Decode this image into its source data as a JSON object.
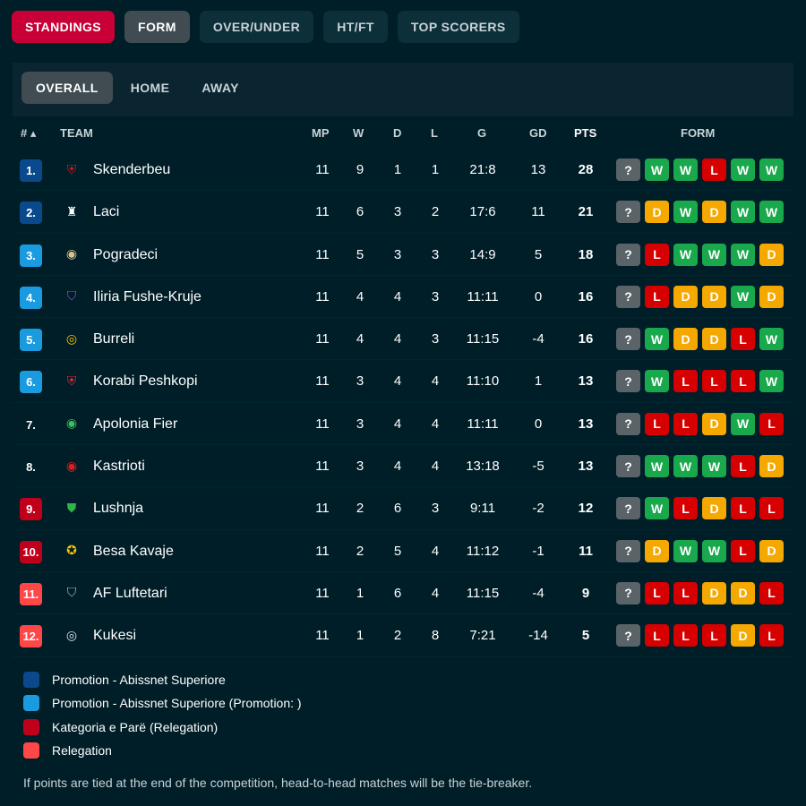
{
  "top_tabs": [
    {
      "label": "STANDINGS",
      "state": "active-red"
    },
    {
      "label": "FORM",
      "state": "active-grey"
    },
    {
      "label": "OVER/UNDER",
      "state": ""
    },
    {
      "label": "HT/FT",
      "state": ""
    },
    {
      "label": "TOP SCORERS",
      "state": ""
    }
  ],
  "sub_tabs": [
    {
      "label": "OVERALL",
      "active": true
    },
    {
      "label": "HOME",
      "active": false
    },
    {
      "label": "AWAY",
      "active": false
    }
  ],
  "headers": {
    "rank": "# ▴",
    "team": "TEAM",
    "mp": "MP",
    "w": "W",
    "d": "D",
    "l": "L",
    "g": "G",
    "gd": "GD",
    "pts": "PTS",
    "form": "FORM"
  },
  "colors": {
    "promotion": "#0a4a8c",
    "promotion_playoff": "#1a9be0",
    "kategoria_pare": "#c0001a",
    "relegation": "#ff4747"
  },
  "rows": [
    {
      "rank": "1.",
      "zone": "promotion",
      "team": "Skenderbeu",
      "logo": "shield-icon",
      "logo_glyph": "⛨",
      "logo_color": "#c81e28",
      "mp": "11",
      "w": "9",
      "d": "1",
      "l": "1",
      "g": "21:8",
      "gd": "13",
      "pts": "28",
      "form": [
        "?",
        "W",
        "W",
        "L",
        "W",
        "W"
      ]
    },
    {
      "rank": "2.",
      "zone": "promotion",
      "team": "Laci",
      "logo": "striped-crest-icon",
      "logo_glyph": "♜",
      "logo_color": "#ffffff",
      "mp": "11",
      "w": "6",
      "d": "3",
      "l": "2",
      "g": "17:6",
      "gd": "11",
      "pts": "21",
      "form": [
        "?",
        "D",
        "W",
        "D",
        "W",
        "W"
      ]
    },
    {
      "rank": "3.",
      "zone": "promotion_playoff",
      "team": "Pogradeci",
      "logo": "round-crest-icon",
      "logo_glyph": "◉",
      "logo_color": "#d9c38a",
      "mp": "11",
      "w": "5",
      "d": "3",
      "l": "3",
      "g": "14:9",
      "gd": "5",
      "pts": "18",
      "form": [
        "?",
        "L",
        "W",
        "W",
        "W",
        "D"
      ]
    },
    {
      "rank": "4.",
      "zone": "promotion_playoff",
      "team": "Iliria Fushe-Kruje",
      "logo": "purple-crest-icon",
      "logo_glyph": "⛉",
      "logo_color": "#8a4fd1",
      "mp": "11",
      "w": "4",
      "d": "4",
      "l": "3",
      "g": "11:11",
      "gd": "0",
      "pts": "16",
      "form": [
        "?",
        "L",
        "D",
        "D",
        "W",
        "D"
      ]
    },
    {
      "rank": "5.",
      "zone": "promotion_playoff",
      "team": "Burreli",
      "logo": "ball-crest-icon",
      "logo_glyph": "◎",
      "logo_color": "#f2c200",
      "mp": "11",
      "w": "4",
      "d": "4",
      "l": "3",
      "g": "11:15",
      "gd": "-4",
      "pts": "16",
      "form": [
        "?",
        "W",
        "D",
        "D",
        "L",
        "W"
      ]
    },
    {
      "rank": "6.",
      "zone": "promotion_playoff",
      "team": "Korabi Peshkopi",
      "logo": "striped-shield-icon",
      "logo_glyph": "⛨",
      "logo_color": "#e0303a",
      "mp": "11",
      "w": "3",
      "d": "4",
      "l": "4",
      "g": "11:10",
      "gd": "1",
      "pts": "13",
      "form": [
        "?",
        "W",
        "L",
        "L",
        "L",
        "W"
      ]
    },
    {
      "rank": "7.",
      "zone": "",
      "team": "Apolonia Fier",
      "logo": "green-round-crest-icon",
      "logo_glyph": "◉",
      "logo_color": "#3bbf5a",
      "mp": "11",
      "w": "3",
      "d": "4",
      "l": "4",
      "g": "11:11",
      "gd": "0",
      "pts": "13",
      "form": [
        "?",
        "L",
        "L",
        "D",
        "W",
        "L"
      ]
    },
    {
      "rank": "8.",
      "zone": "",
      "team": "Kastrioti",
      "logo": "red-round-crest-icon",
      "logo_glyph": "◉",
      "logo_color": "#e01e1e",
      "mp": "11",
      "w": "3",
      "d": "4",
      "l": "4",
      "g": "13:18",
      "gd": "-5",
      "pts": "13",
      "form": [
        "?",
        "W",
        "W",
        "W",
        "L",
        "D"
      ]
    },
    {
      "rank": "9.",
      "zone": "kategoria_pare",
      "team": "Lushnja",
      "logo": "red-green-crest-icon",
      "logo_glyph": "⛊",
      "logo_color": "#2fb54a",
      "mp": "11",
      "w": "2",
      "d": "6",
      "l": "3",
      "g": "9:11",
      "gd": "-2",
      "pts": "12",
      "form": [
        "?",
        "W",
        "L",
        "D",
        "L",
        "L"
      ]
    },
    {
      "rank": "10.",
      "zone": "kategoria_pare",
      "team": "Besa Kavaje",
      "logo": "yellow-crest-icon",
      "logo_glyph": "✪",
      "logo_color": "#f5c400",
      "mp": "11",
      "w": "2",
      "d": "5",
      "l": "4",
      "g": "11:12",
      "gd": "-1",
      "pts": "11",
      "form": [
        "?",
        "D",
        "W",
        "W",
        "L",
        "D"
      ]
    },
    {
      "rank": "11.",
      "zone": "relegation",
      "team": "AF Luftetari",
      "logo": "blue-crest-icon",
      "logo_glyph": "⛉",
      "logo_color": "#9fb6d6",
      "mp": "11",
      "w": "1",
      "d": "6",
      "l": "4",
      "g": "11:15",
      "gd": "-4",
      "pts": "9",
      "form": [
        "?",
        "L",
        "L",
        "D",
        "D",
        "L"
      ]
    },
    {
      "rank": "12.",
      "zone": "relegation",
      "team": "Kukesi",
      "logo": "white-round-crest-icon",
      "logo_glyph": "◎",
      "logo_color": "#d6e2f0",
      "mp": "11",
      "w": "1",
      "d": "2",
      "l": "8",
      "g": "7:21",
      "gd": "-14",
      "pts": "5",
      "form": [
        "?",
        "L",
        "L",
        "L",
        "D",
        "L"
      ]
    }
  ],
  "legend": [
    {
      "zone": "promotion",
      "label": "Promotion - Abissnet Superiore"
    },
    {
      "zone": "promotion_playoff",
      "label": "Promotion - Abissnet Superiore (Promotion: )"
    },
    {
      "zone": "kategoria_pare",
      "label": "Kategoria e Parë (Relegation)"
    },
    {
      "zone": "relegation",
      "label": "Relegation"
    }
  ],
  "note": "If points are tied at the end of the competition, head-to-head matches will be the tie-breaker."
}
